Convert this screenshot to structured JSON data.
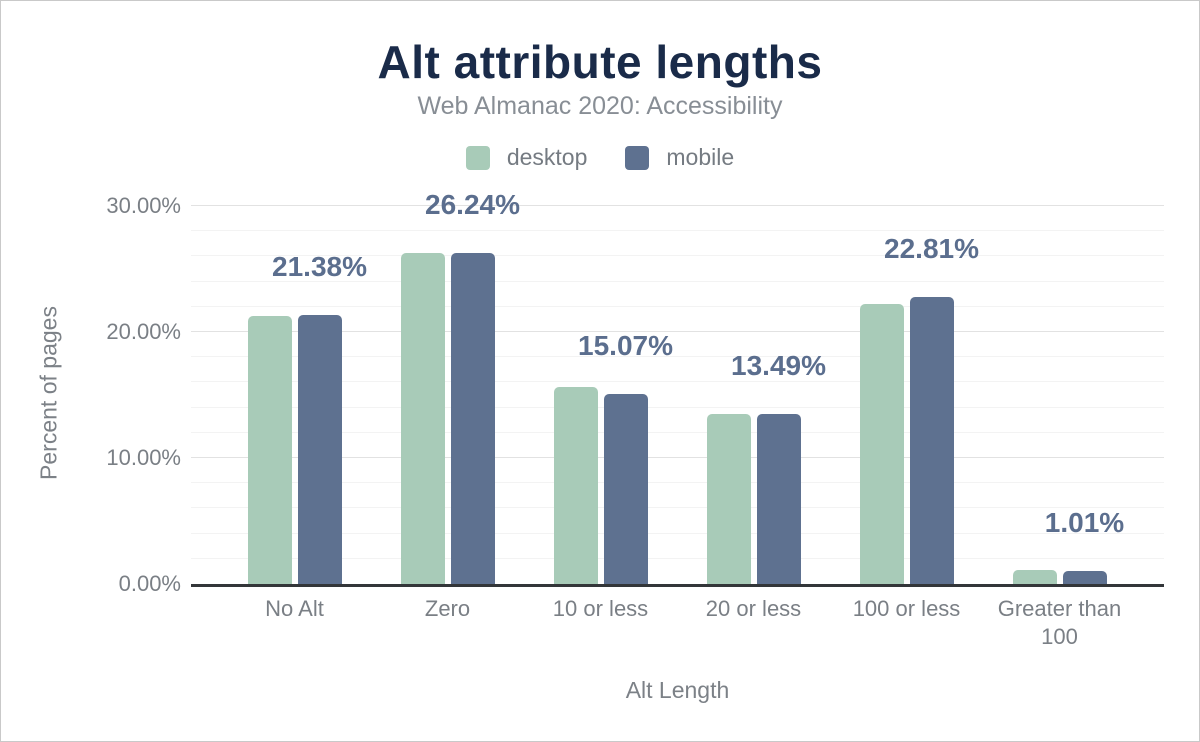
{
  "chart": {
    "title": "Alt attribute lengths",
    "subtitle": "Web Almanac 2020: Accessibility",
    "xlabel": "Alt Length",
    "ylabel": "Percent of pages"
  },
  "legend": {
    "items": [
      {
        "label": "desktop",
        "color": "#a8cbb8"
      },
      {
        "label": "mobile",
        "color": "#5e7190"
      }
    ]
  },
  "chart_data": {
    "type": "bar",
    "title": "Alt attribute lengths",
    "subtitle": "Web Almanac 2020: Accessibility",
    "xlabel": "Alt Length",
    "ylabel": "Percent of pages",
    "categories": [
      "No Alt",
      "Zero",
      "10 or less",
      "20 or less",
      "100 or less",
      "Greater than 100"
    ],
    "series": [
      {
        "name": "desktop",
        "color": "#a8cbb8",
        "values": [
          21.26,
          26.27,
          15.66,
          13.47,
          22.2,
          1.09
        ]
      },
      {
        "name": "mobile",
        "color": "#5e7190",
        "values": [
          21.38,
          26.24,
          15.07,
          13.49,
          22.81,
          1.01
        ]
      }
    ],
    "data_labels": [
      "21.38%",
      "26.24%",
      "15.07%",
      "13.49%",
      "22.81%",
      "1.01%"
    ],
    "data_labels_series": "mobile",
    "ylim": [
      0,
      30
    ],
    "y_ticks": [
      {
        "value": 0,
        "label": "0.00%"
      },
      {
        "value": 10,
        "label": "10.00%"
      },
      {
        "value": 20,
        "label": "20.00%"
      },
      {
        "value": 30,
        "label": "30.00%"
      }
    ],
    "grid": {
      "on": true,
      "minor_step": 2,
      "major_step": 10
    },
    "legend_position": "top-center",
    "colors": {
      "title": "#1a2b49",
      "subtitle": "#888e95",
      "data_label": "#5b6e8e",
      "axis_text": "#7a7f85",
      "axis_line": "#333639",
      "grid_major": "#e2e2e2",
      "grid_minor": "#f3f3f3"
    }
  }
}
